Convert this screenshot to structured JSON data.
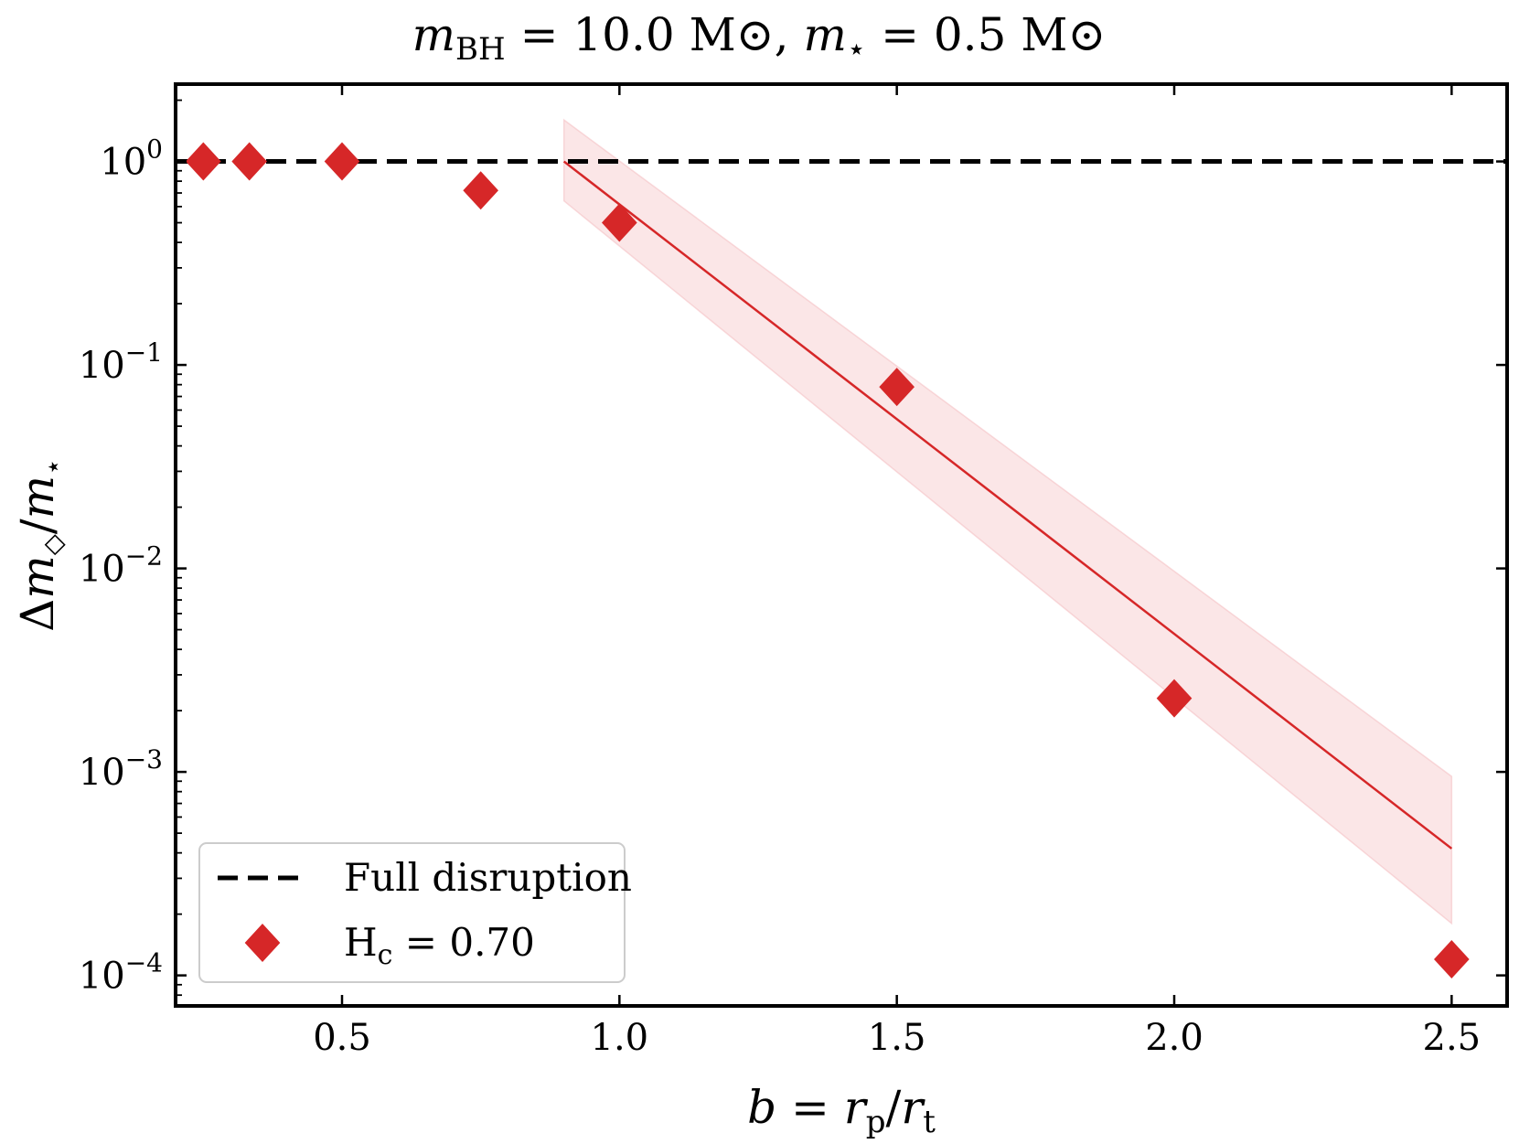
{
  "chart_data": {
    "type": "scatter",
    "title": "m_BH = 10.0 M⊙, m⋆ = 0.5 M⊙",
    "xlabel": "b = r_p / r_t",
    "ylabel": "Δm◇ / m⋆",
    "x_scale": "linear",
    "y_scale": "log",
    "xlim": [
      0.2,
      2.6
    ],
    "ylim_log10": [
      -4.15,
      0.38
    ],
    "x_ticks": [
      0.5,
      1.0,
      1.5,
      2.0,
      2.5
    ],
    "x_tick_labels": [
      "0.5",
      "1.0",
      "1.5",
      "2.0",
      "2.5"
    ],
    "y_ticks_log10": [
      0,
      -1,
      -2,
      -3,
      -4
    ],
    "y_tick_labels": [
      {
        "base": "10",
        "exp": "0"
      },
      {
        "base": "10",
        "exp": "−1"
      },
      {
        "base": "10",
        "exp": "−2"
      },
      {
        "base": "10",
        "exp": "−3"
      },
      {
        "base": "10",
        "exp": "−4"
      }
    ],
    "reference_line": {
      "name": "Full disruption",
      "y": 1.0,
      "style": "dashed",
      "color": "#000000"
    },
    "series": [
      {
        "name": "H_c = 0.70",
        "marker": "diamond",
        "color": "#d62728",
        "x": [
          0.25,
          0.333,
          0.5,
          0.75,
          1.0,
          1.5,
          2.0,
          2.5
        ],
        "y": [
          1.0,
          1.0,
          1.0,
          0.72,
          0.5,
          0.078,
          0.0023,
          0.00012
        ]
      }
    ],
    "fit": {
      "color": "#d62728",
      "x": [
        0.9,
        2.5
      ],
      "y": [
        1.0,
        0.00042
      ],
      "band_upper": [
        1.6,
        0.00095
      ],
      "band_lower": [
        0.64,
        0.00018
      ],
      "band_color": "#f4b8bb"
    },
    "legend": {
      "position": "lower-left",
      "entries": [
        {
          "label": "Full disruption",
          "kind": "dashed-line"
        },
        {
          "label_main": "H",
          "label_sub": "c",
          "label_rest": " = 0.70",
          "kind": "diamond"
        }
      ]
    }
  }
}
